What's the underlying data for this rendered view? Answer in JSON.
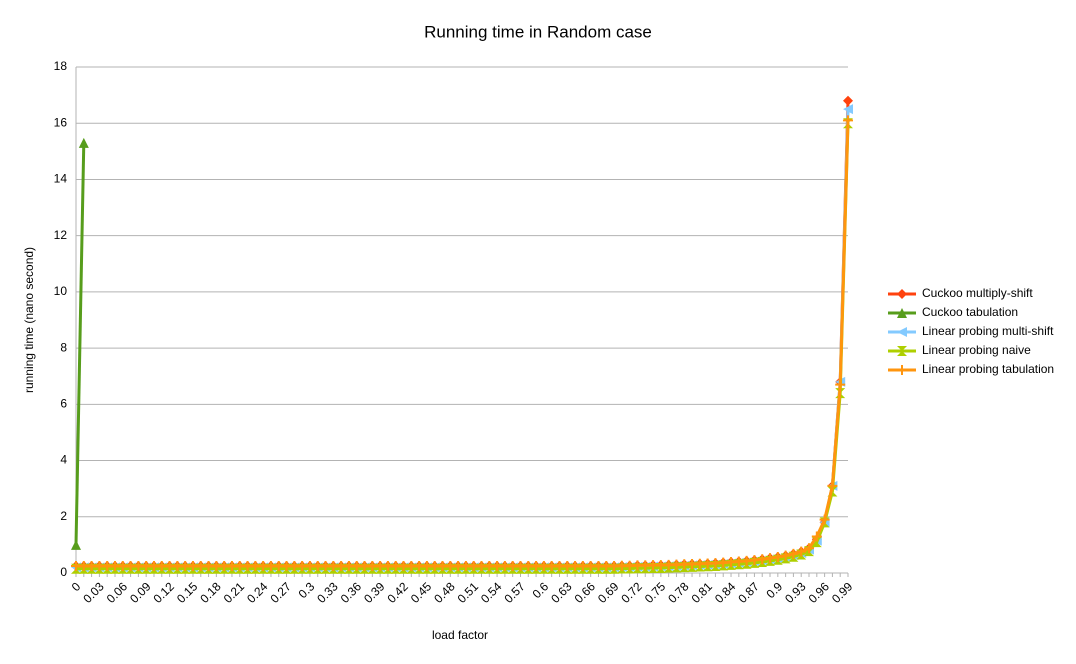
{
  "chart_data": {
    "type": "line",
    "title": "Running time in Random case",
    "x_label": "load factor",
    "y_label": "running time (nano second)",
    "categories": [
      "0",
      null,
      null,
      "0.03",
      null,
      null,
      "0.06",
      null,
      null,
      "0.09",
      null,
      null,
      "0.12",
      null,
      null,
      "0.15",
      null,
      null,
      "0.18",
      null,
      null,
      "0.21",
      null,
      null,
      "0.24",
      null,
      null,
      "0.27",
      null,
      null,
      "0.3",
      null,
      null,
      "0.33",
      null,
      null,
      "0.36",
      null,
      null,
      "0.39",
      null,
      null,
      "0.42",
      null,
      null,
      "0.45",
      null,
      null,
      "0.48",
      null,
      null,
      "0.51",
      null,
      null,
      "0.54",
      null,
      null,
      "0.57",
      null,
      null,
      "0.6",
      null,
      null,
      "0.63",
      null,
      null,
      "0.66",
      null,
      null,
      "0.69",
      null,
      null,
      "0.72",
      null,
      null,
      "0.75",
      null,
      null,
      "0.78",
      null,
      null,
      "0.81",
      null,
      null,
      "0.84",
      null,
      null,
      "0.87",
      null,
      null,
      "0.9",
      null,
      null,
      "0.93",
      null,
      null,
      "0.96",
      null,
      null,
      "0.99"
    ],
    "series": [
      {
        "name": "Cuckoo multiply-shift",
        "color": "#ff420e",
        "marker": "diamond",
        "values": [
          0.25,
          0.25,
          0.25,
          0.25,
          0.25,
          0.25,
          0.25,
          0.25,
          0.25,
          0.25,
          0.25,
          0.25,
          0.25,
          0.25,
          0.25,
          0.25,
          0.25,
          0.25,
          0.25,
          0.25,
          0.25,
          0.25,
          0.25,
          0.25,
          0.25,
          0.25,
          0.25,
          0.25,
          0.25,
          0.25,
          0.25,
          0.25,
          0.25,
          0.25,
          0.25,
          0.25,
          0.25,
          0.25,
          0.25,
          0.25,
          0.25,
          0.25,
          0.25,
          0.25,
          0.25,
          0.25,
          0.25,
          0.25,
          0.25,
          0.25,
          0.25,
          0.25,
          0.25,
          0.25,
          0.25,
          0.25,
          0.25,
          0.25,
          0.25,
          0.25,
          0.25,
          0.25,
          0.25,
          0.25,
          0.25,
          0.25,
          0.25,
          0.25,
          0.25,
          0.25,
          0.26,
          0.26,
          0.27,
          0.27,
          0.28,
          0.28,
          0.29,
          0.3,
          0.31,
          0.32,
          0.33,
          0.34,
          0.35,
          0.37,
          0.39,
          0.41,
          0.43,
          0.46,
          0.49,
          0.53,
          0.57,
          0.62,
          0.68,
          0.76,
          0.88,
          1.2,
          1.8,
          3.1,
          6.8,
          16.8
        ]
      },
      {
        "name": "Cuckoo tabulation",
        "color": "#579d1c",
        "marker": "triangle",
        "values": [
          1.0,
          15.3,
          null,
          null,
          null,
          null,
          null,
          null,
          null,
          null,
          null,
          null,
          null,
          null,
          null,
          null,
          null,
          null,
          null,
          null,
          null,
          null,
          null,
          null,
          null,
          null,
          null,
          null,
          null,
          null,
          null,
          null,
          null,
          null,
          null,
          null,
          null,
          null,
          null,
          null,
          null,
          null,
          null,
          null,
          null,
          null,
          null,
          null,
          null,
          null,
          null,
          null,
          null,
          null,
          null,
          null,
          null,
          null,
          null,
          null,
          null,
          null,
          null,
          null,
          null,
          null,
          null,
          null,
          null,
          null,
          null,
          null,
          null,
          null,
          null,
          null,
          null,
          null,
          null,
          null,
          null,
          null,
          null,
          null,
          null,
          null,
          null,
          null,
          null,
          null,
          null,
          null,
          null,
          null,
          null,
          null,
          null,
          null,
          null,
          null
        ]
      },
      {
        "name": "Linear probing multi-shift",
        "color": "#83caff",
        "marker": "triangle-left",
        "values": [
          0.2,
          0.2,
          0.2,
          0.2,
          0.2,
          0.2,
          0.2,
          0.2,
          0.2,
          0.2,
          0.2,
          0.2,
          0.2,
          0.2,
          0.2,
          0.2,
          0.2,
          0.2,
          0.2,
          0.2,
          0.2,
          0.2,
          0.2,
          0.2,
          0.2,
          0.2,
          0.2,
          0.2,
          0.2,
          0.2,
          0.2,
          0.2,
          0.2,
          0.2,
          0.2,
          0.2,
          0.2,
          0.2,
          0.2,
          0.2,
          0.2,
          0.2,
          0.2,
          0.2,
          0.2,
          0.2,
          0.2,
          0.2,
          0.2,
          0.2,
          0.2,
          0.2,
          0.2,
          0.2,
          0.2,
          0.2,
          0.2,
          0.2,
          0.2,
          0.2,
          0.2,
          0.2,
          0.2,
          0.2,
          0.2,
          0.2,
          0.2,
          0.2,
          0.2,
          0.2,
          0.21,
          0.21,
          0.22,
          0.22,
          0.23,
          0.23,
          0.24,
          0.25,
          0.26,
          0.27,
          0.28,
          0.29,
          0.3,
          0.32,
          0.34,
          0.36,
          0.38,
          0.41,
          0.44,
          0.48,
          0.52,
          0.57,
          0.63,
          0.71,
          0.83,
          1.15,
          1.8,
          3.1,
          6.8,
          16.5
        ]
      },
      {
        "name": "Linear probing naive",
        "color": "#aecf00",
        "marker": "hourglass",
        "values": [
          0.15,
          0.15,
          0.15,
          0.15,
          0.15,
          0.15,
          0.15,
          0.15,
          0.15,
          0.15,
          0.15,
          0.15,
          0.15,
          0.15,
          0.15,
          0.15,
          0.15,
          0.15,
          0.15,
          0.15,
          0.15,
          0.15,
          0.15,
          0.15,
          0.15,
          0.15,
          0.15,
          0.15,
          0.15,
          0.15,
          0.15,
          0.15,
          0.15,
          0.15,
          0.15,
          0.15,
          0.15,
          0.15,
          0.15,
          0.15,
          0.15,
          0.15,
          0.15,
          0.15,
          0.15,
          0.15,
          0.15,
          0.15,
          0.15,
          0.15,
          0.15,
          0.15,
          0.15,
          0.15,
          0.15,
          0.15,
          0.15,
          0.15,
          0.15,
          0.15,
          0.15,
          0.15,
          0.15,
          0.15,
          0.15,
          0.15,
          0.15,
          0.15,
          0.15,
          0.15,
          0.16,
          0.16,
          0.17,
          0.17,
          0.18,
          0.18,
          0.19,
          0.2,
          0.21,
          0.22,
          0.23,
          0.24,
          0.25,
          0.27,
          0.29,
          0.31,
          0.33,
          0.36,
          0.39,
          0.43,
          0.47,
          0.52,
          0.58,
          0.66,
          0.78,
          1.1,
          1.8,
          2.9,
          6.4,
          16.0
        ]
      },
      {
        "name": "Linear probing tabulation",
        "color": "#ff950e",
        "marker": "star",
        "values": [
          0.25,
          0.25,
          0.25,
          0.25,
          0.25,
          0.25,
          0.25,
          0.25,
          0.25,
          0.25,
          0.25,
          0.25,
          0.25,
          0.25,
          0.25,
          0.25,
          0.25,
          0.25,
          0.25,
          0.25,
          0.25,
          0.25,
          0.25,
          0.25,
          0.25,
          0.25,
          0.25,
          0.25,
          0.25,
          0.25,
          0.25,
          0.25,
          0.25,
          0.25,
          0.25,
          0.25,
          0.25,
          0.25,
          0.25,
          0.25,
          0.25,
          0.25,
          0.25,
          0.25,
          0.25,
          0.25,
          0.25,
          0.25,
          0.25,
          0.25,
          0.25,
          0.25,
          0.25,
          0.25,
          0.25,
          0.25,
          0.25,
          0.25,
          0.25,
          0.25,
          0.25,
          0.25,
          0.25,
          0.25,
          0.25,
          0.25,
          0.25,
          0.25,
          0.25,
          0.25,
          0.26,
          0.26,
          0.27,
          0.27,
          0.28,
          0.28,
          0.29,
          0.3,
          0.31,
          0.32,
          0.33,
          0.34,
          0.35,
          0.37,
          0.39,
          0.41,
          0.43,
          0.46,
          0.49,
          0.53,
          0.57,
          0.62,
          0.68,
          0.76,
          0.88,
          1.3,
          1.9,
          3.1,
          6.7,
          16.1
        ]
      }
    ],
    "ylim": [
      0,
      18
    ],
    "yticks": [
      0,
      2,
      4,
      6,
      8,
      10,
      12,
      14,
      16,
      18
    ],
    "grid": true,
    "legend": "right"
  }
}
